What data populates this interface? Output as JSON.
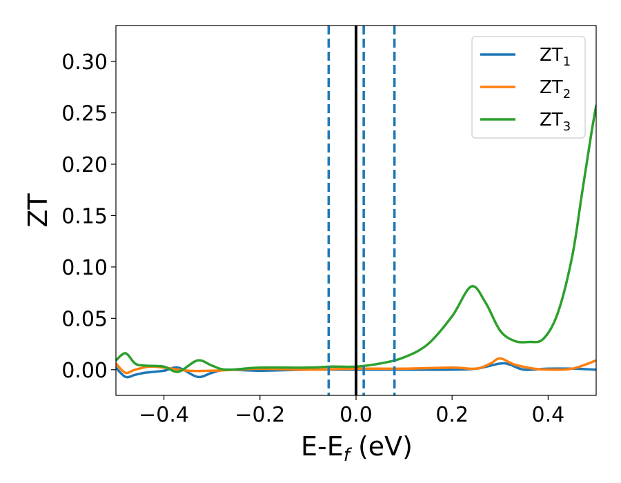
{
  "chart_data": {
    "type": "line",
    "xlabel_main": "E-E",
    "xlabel_sub": "f",
    "xlabel_unit": " (eV)",
    "ylabel": "ZT",
    "xlim": [
      -0.5,
      0.5
    ],
    "ylim": [
      -0.025,
      0.335
    ],
    "x_ticks": [
      -0.4,
      -0.2,
      0.0,
      0.2,
      0.4
    ],
    "x_tick_labels": [
      "−0.4",
      "−0.2",
      "0.0",
      "0.2",
      "0.4"
    ],
    "y_ticks": [
      0.0,
      0.05,
      0.1,
      0.15,
      0.2,
      0.25,
      0.3
    ],
    "y_tick_labels": [
      "0.00",
      "0.05",
      "0.10",
      "0.15",
      "0.20",
      "0.25",
      "0.30"
    ],
    "grid": false,
    "legend_position": "top-right",
    "vertical_lines": [
      {
        "x": 0.0,
        "style": "solid",
        "color": "#000000"
      },
      {
        "x": -0.057,
        "style": "dashed",
        "color": "#1f77b4"
      },
      {
        "x": 0.016,
        "style": "dashed",
        "color": "#1f77b4"
      },
      {
        "x": 0.08,
        "style": "dashed",
        "color": "#1f77b4"
      }
    ],
    "series": [
      {
        "name": "ZT",
        "subscript": "1",
        "color": "#1f77b4",
        "points": [
          [
            -0.5,
            0.002
          ],
          [
            -0.48,
            -0.007
          ],
          [
            -0.46,
            -0.005
          ],
          [
            -0.44,
            -0.003
          ],
          [
            -0.4,
            -0.001
          ],
          [
            -0.37,
            0.002
          ],
          [
            -0.33,
            -0.007
          ],
          [
            -0.3,
            -0.003
          ],
          [
            -0.27,
            0.0
          ],
          [
            -0.2,
            -0.001
          ],
          [
            -0.1,
            0.0
          ],
          [
            0.0,
            0.0
          ],
          [
            0.1,
            0.0
          ],
          [
            0.2,
            0.0
          ],
          [
            0.25,
            0.001
          ],
          [
            0.3,
            0.006
          ],
          [
            0.32,
            0.005
          ],
          [
            0.35,
            0.0
          ],
          [
            0.4,
            0.001
          ],
          [
            0.45,
            0.001
          ],
          [
            0.5,
            0.0
          ]
        ]
      },
      {
        "name": "ZT",
        "subscript": "2",
        "color": "#ff7f0e",
        "points": [
          [
            -0.5,
            0.006
          ],
          [
            -0.48,
            -0.003
          ],
          [
            -0.46,
            0.0
          ],
          [
            -0.43,
            0.003
          ],
          [
            -0.4,
            0.002
          ],
          [
            -0.35,
            -0.001
          ],
          [
            -0.3,
            -0.001
          ],
          [
            -0.25,
            0.0
          ],
          [
            -0.2,
            0.001
          ],
          [
            -0.1,
            0.0
          ],
          [
            0.0,
            0.001
          ],
          [
            0.1,
            0.001
          ],
          [
            0.2,
            0.002
          ],
          [
            0.25,
            0.001
          ],
          [
            0.28,
            0.006
          ],
          [
            0.3,
            0.011
          ],
          [
            0.33,
            0.005
          ],
          [
            0.37,
            0.001
          ],
          [
            0.4,
            0.0
          ],
          [
            0.45,
            0.001
          ],
          [
            0.5,
            0.009
          ]
        ]
      },
      {
        "name": "ZT",
        "subscript": "3",
        "color": "#2ca02c",
        "points": [
          [
            -0.5,
            0.009
          ],
          [
            -0.48,
            0.016
          ],
          [
            -0.46,
            0.006
          ],
          [
            -0.44,
            0.004
          ],
          [
            -0.4,
            0.003
          ],
          [
            -0.37,
            -0.002
          ],
          [
            -0.33,
            0.009
          ],
          [
            -0.3,
            0.004
          ],
          [
            -0.27,
            0.0
          ],
          [
            -0.2,
            0.002
          ],
          [
            -0.1,
            0.002
          ],
          [
            -0.05,
            0.003
          ],
          [
            0.0,
            0.003
          ],
          [
            0.05,
            0.006
          ],
          [
            0.1,
            0.012
          ],
          [
            0.15,
            0.025
          ],
          [
            0.2,
            0.052
          ],
          [
            0.24,
            0.081
          ],
          [
            0.27,
            0.065
          ],
          [
            0.3,
            0.038
          ],
          [
            0.33,
            0.028
          ],
          [
            0.36,
            0.027
          ],
          [
            0.39,
            0.03
          ],
          [
            0.42,
            0.055
          ],
          [
            0.45,
            0.11
          ],
          [
            0.47,
            0.17
          ],
          [
            0.49,
            0.23
          ],
          [
            0.5,
            0.257
          ]
        ]
      }
    ]
  }
}
